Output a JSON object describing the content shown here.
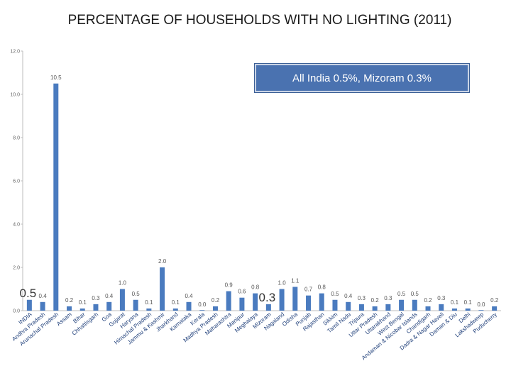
{
  "chart_data": {
    "type": "bar",
    "title": "PERCENTAGE OF HOUSEHOLDS WITH NO LIGHTING (2011)",
    "annotation": "All India 0.5%, Mizoram 0.3%",
    "xlabel": "",
    "ylabel": "",
    "ylim": [
      0,
      12
    ],
    "yticks": [
      "0.0",
      "2.0",
      "4.0",
      "6.0",
      "8.0",
      "10.0",
      "12.0"
    ],
    "grid": false,
    "bar_color": "#4a7bbf",
    "categories": [
      "INDIA",
      "Andhra Pradesh",
      "Arunachal Pradesh",
      "Assam",
      "Bihar",
      "Chhattisgarh",
      "Goa",
      "Gujarat",
      "Haryana",
      "Himachal Pradesh",
      "Jammu & Kashmir",
      "Jharkhand",
      "Karnataka",
      "Kerala",
      "Madhya Pradesh",
      "Maharashtra",
      "Manipur",
      "Meghalaya",
      "Mizoram",
      "Nagaland",
      "Odisha",
      "Punjab",
      "Rajasthan",
      "Sikkim",
      "Tamil Nadu",
      "Tripura",
      "Uttar Pradesh",
      "Uttarakhand",
      "West Bengal",
      "Andaman & Nicobar Islands",
      "Chandigarh",
      "Dadra & Nagar Haveli",
      "Daman & Diu",
      "Delhi",
      "Lakshadweep",
      "Puducherry"
    ],
    "values": [
      0.5,
      0.4,
      10.5,
      0.2,
      0.1,
      0.3,
      0.4,
      1.0,
      0.5,
      0.1,
      2.0,
      0.1,
      0.4,
      0.0,
      0.2,
      0.9,
      0.6,
      0.8,
      0.3,
      1.0,
      1.1,
      0.7,
      0.8,
      0.5,
      0.4,
      0.3,
      0.2,
      0.3,
      0.5,
      0.5,
      0.2,
      0.3,
      0.1,
      0.1,
      0.0,
      0.2
    ],
    "value_labels": [
      "0.5",
      "0.4",
      "10.5",
      "0.2",
      "0.1",
      "0.3",
      "0.4",
      "1.0",
      "0.5",
      "0.1",
      "2.0",
      "0.1",
      "0.4",
      "0.0",
      "0.2",
      "0.9",
      "0.6",
      "0.8",
      "0.3",
      "1.0",
      "1.1",
      "0.7",
      "0.8",
      "0.5",
      "0.4",
      "0.3",
      "0.2",
      "0.3",
      "0.5",
      "0.5",
      "0.2",
      "0.3",
      "0.1",
      "0.1",
      "0.0",
      "0.2"
    ],
    "highlighted": [
      "INDIA",
      "Mizoram"
    ]
  }
}
